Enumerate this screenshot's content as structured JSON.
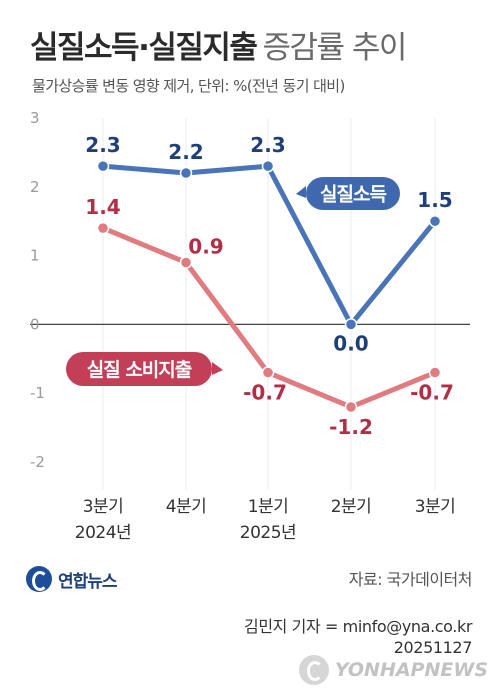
{
  "title": {
    "strong": "실질소득·실질지출",
    "light": "증감률 추이"
  },
  "subtitle": "물가상승률 변동 영향 제거, 단위: %(전년 동기 대비)",
  "chart_data": {
    "type": "line",
    "categories": [
      [
        "3분기",
        "2024년"
      ],
      [
        "4분기",
        ""
      ],
      [
        "1분기",
        "2025년"
      ],
      [
        "2분기",
        ""
      ],
      [
        "3분기",
        ""
      ]
    ],
    "series": [
      {
        "name": "실질소득",
        "values": [
          2.3,
          2.2,
          2.3,
          0.0,
          1.5
        ],
        "labels": [
          "2.3",
          "2.2",
          "2.3",
          "0.0",
          "1.5"
        ],
        "color": "#4a74b8",
        "label_color": "#1f3f7a",
        "legend_color": "#3f68ae"
      },
      {
        "name": "실질 소비지출",
        "values": [
          1.4,
          0.9,
          -0.7,
          -1.2,
          -0.7
        ],
        "labels": [
          "1.4",
          "0.9",
          "-0.7",
          "-1.2",
          "-0.7"
        ],
        "color": "#e07b80",
        "label_color": "#b32d45",
        "legend_color": "#c23f57"
      }
    ],
    "yticks": [
      "3",
      "2",
      "1",
      "0",
      "-1",
      "-2"
    ],
    "ylim": [
      -2,
      3
    ],
    "grid": false,
    "zero_line": true
  },
  "logo": "연합뉴스",
  "source": "자료: 국가데이터처",
  "credit": {
    "reporter": "김민지 기자 = minfo@yna.co.kr",
    "date": "20251127"
  },
  "watermark": "YONHAPNEWS"
}
